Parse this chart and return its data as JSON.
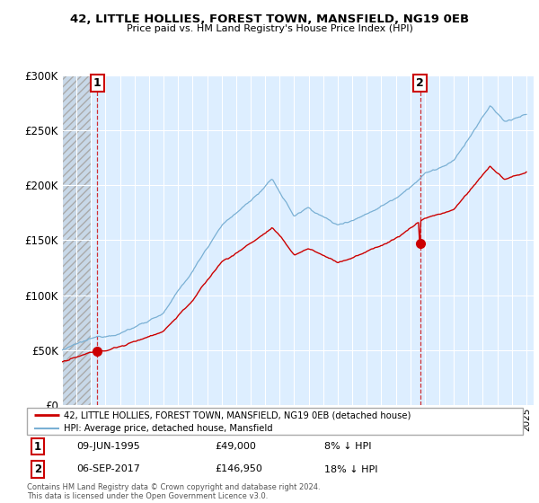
{
  "title": "42, LITTLE HOLLIES, FOREST TOWN, MANSFIELD, NG19 0EB",
  "subtitle": "Price paid vs. HM Land Registry's House Price Index (HPI)",
  "legend_line1": "42, LITTLE HOLLIES, FOREST TOWN, MANSFIELD, NG19 0EB (detached house)",
  "legend_line2": "HPI: Average price, detached house, Mansfield",
  "annotation1_date": "09-JUN-1995",
  "annotation1_price": "£49,000",
  "annotation1_hpi": "8% ↓ HPI",
  "annotation2_date": "06-SEP-2017",
  "annotation2_price": "£146,950",
  "annotation2_hpi": "18% ↓ HPI",
  "footer": "Contains HM Land Registry data © Crown copyright and database right 2024.\nThis data is licensed under the Open Government Licence v3.0.",
  "sale1_x": 1995.44,
  "sale1_y": 49000,
  "sale2_x": 2017.68,
  "sale2_y": 146950,
  "ylim": [
    0,
    300000
  ],
  "xlim_start": 1993.0,
  "xlim_end": 2025.5,
  "red_color": "#cc0000",
  "blue_color": "#7ab0d4",
  "bg_color": "#ddeeff",
  "hatch_bg": "#e8e8e8"
}
